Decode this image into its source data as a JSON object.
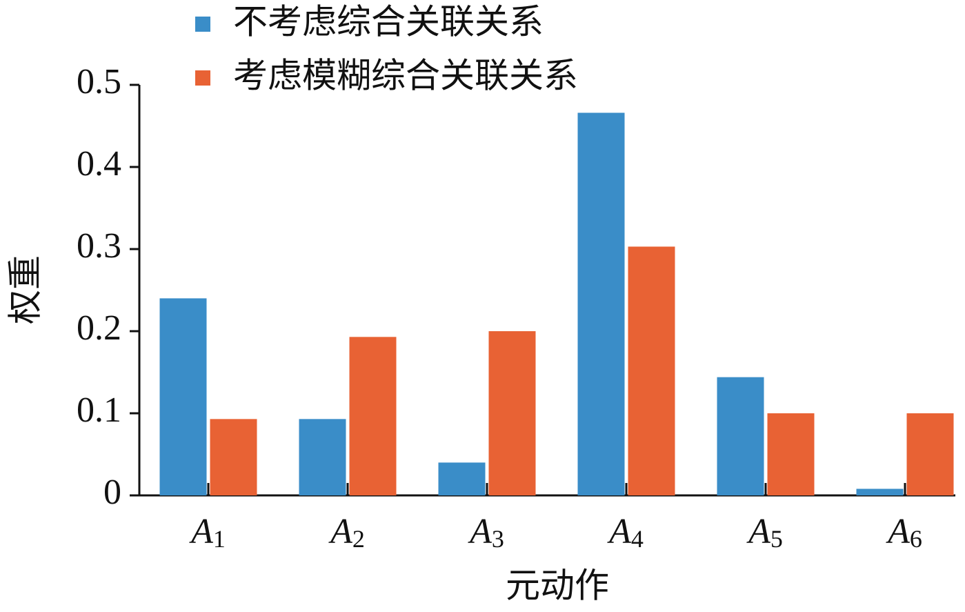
{
  "chart_data": {
    "type": "bar",
    "x_label": "元动作",
    "y_label": "权重",
    "categories": [
      "A1",
      "A2",
      "A3",
      "A4",
      "A5",
      "A6"
    ],
    "series": [
      {
        "name": "不考虑综合关联关系",
        "color": "#3a8dc8",
        "values": [
          0.24,
          0.093,
          0.04,
          0.466,
          0.144,
          0.008
        ]
      },
      {
        "name": "考虑模糊综合关联关系",
        "color": "#e86234",
        "values": [
          0.093,
          0.193,
          0.2,
          0.303,
          0.1,
          0.1
        ]
      }
    ],
    "ylim": [
      0,
      0.5
    ],
    "yticks": [
      0,
      0.1,
      0.2,
      0.3,
      0.4,
      0.5
    ],
    "legend": "top"
  }
}
